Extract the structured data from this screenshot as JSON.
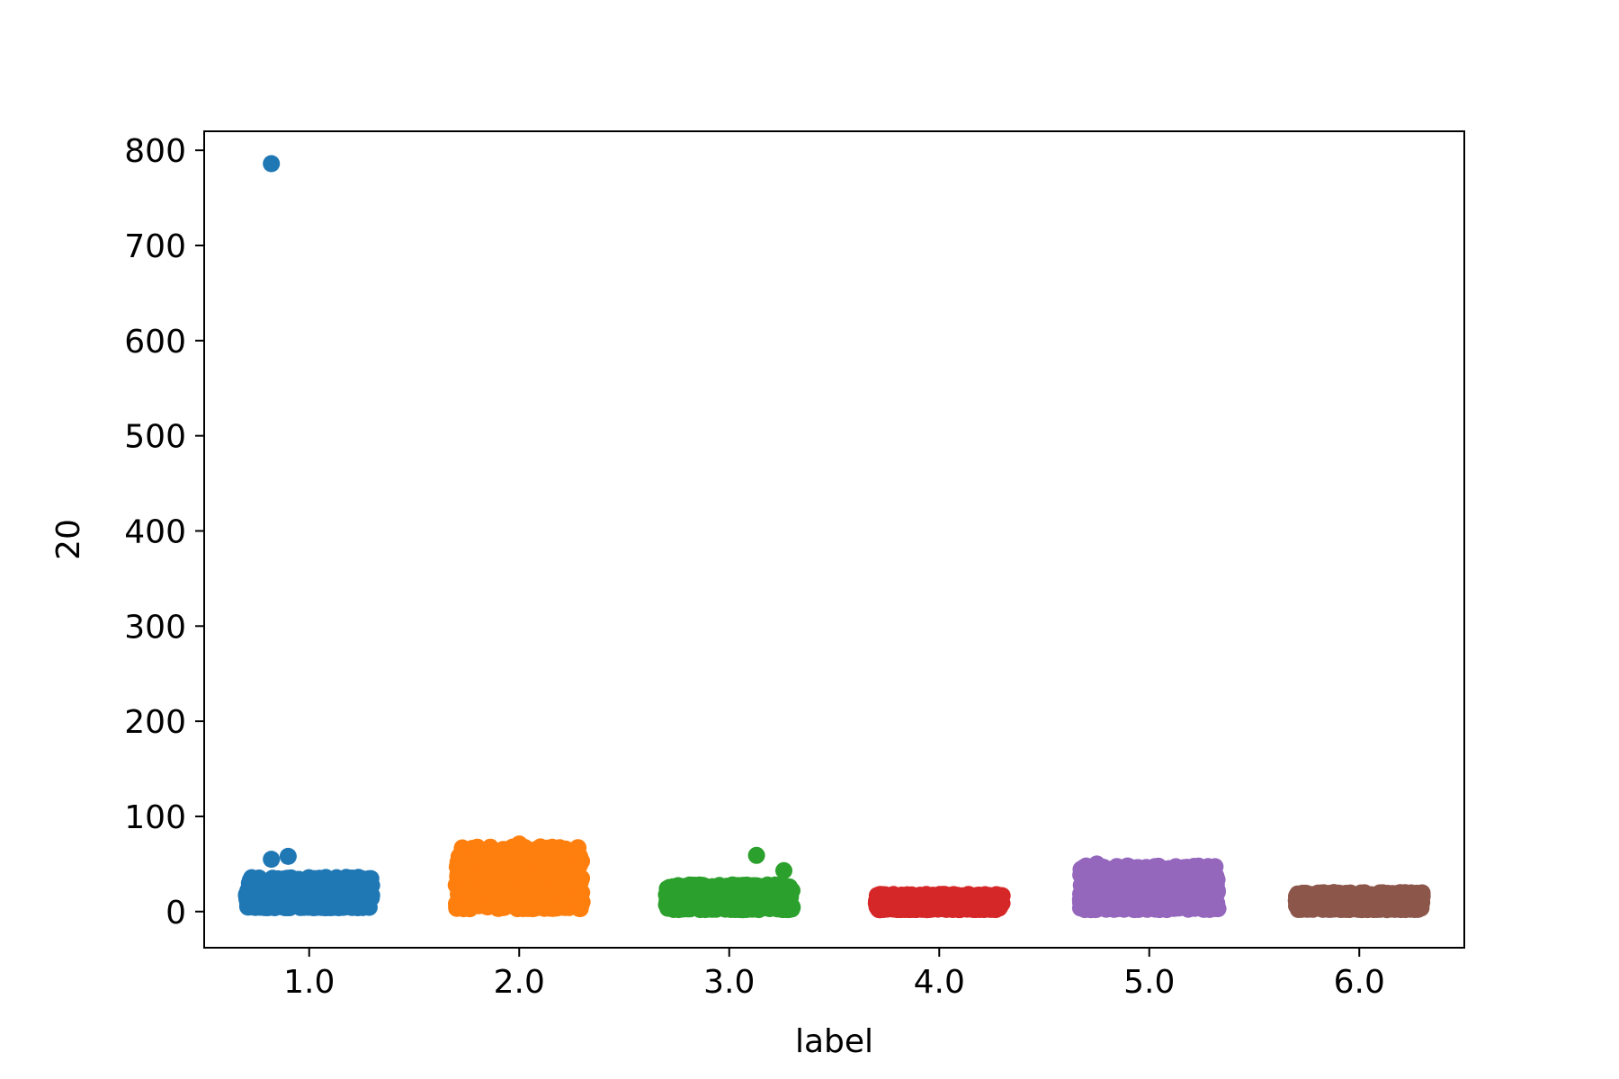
{
  "chart_data": {
    "type": "scatter",
    "title": "",
    "xlabel": "label",
    "ylabel": "20",
    "categories": [
      "1.0",
      "2.0",
      "3.0",
      "4.0",
      "5.0",
      "6.0"
    ],
    "x_values": [
      1,
      2,
      3,
      4,
      5,
      6
    ],
    "xlim": [
      0.5,
      6.5
    ],
    "ylim": [
      -38,
      820
    ],
    "yticks": [
      0,
      100,
      200,
      300,
      400,
      500,
      600,
      700,
      800
    ],
    "ytick_labels": [
      "0",
      "100",
      "200",
      "300",
      "400",
      "500",
      "600",
      "700",
      "800"
    ],
    "grid": false,
    "legend": "none",
    "series": [
      {
        "category": "1.0",
        "color": "#1f77b4",
        "jitter": 0.3,
        "typical_range": [
          4,
          36
        ],
        "outliers": [
          {
            "x": 0.82,
            "y": 786
          },
          {
            "x": 0.82,
            "y": 55
          },
          {
            "x": 0.9,
            "y": 58
          }
        ]
      },
      {
        "category": "2.0",
        "color": "#ff7f0e",
        "jitter": 0.3,
        "typical_range": [
          3,
          68
        ],
        "outliers": [
          {
            "x": 2.0,
            "y": 71
          }
        ]
      },
      {
        "category": "3.0",
        "color": "#2ca02c",
        "jitter": 0.3,
        "typical_range": [
          2,
          28
        ],
        "outliers": [
          {
            "x": 3.13,
            "y": 59
          },
          {
            "x": 3.26,
            "y": 43
          }
        ]
      },
      {
        "category": "4.0",
        "color": "#d62728",
        "jitter": 0.3,
        "typical_range": [
          2,
          18
        ],
        "outliers": []
      },
      {
        "category": "5.0",
        "color": "#9467bd",
        "jitter": 0.33,
        "typical_range": [
          2,
          48
        ],
        "outliers": [
          {
            "x": 4.75,
            "y": 50
          }
        ]
      },
      {
        "category": "6.0",
        "color": "#8c564b",
        "jitter": 0.3,
        "typical_range": [
          2,
          20
        ],
        "outliers": []
      }
    ]
  }
}
